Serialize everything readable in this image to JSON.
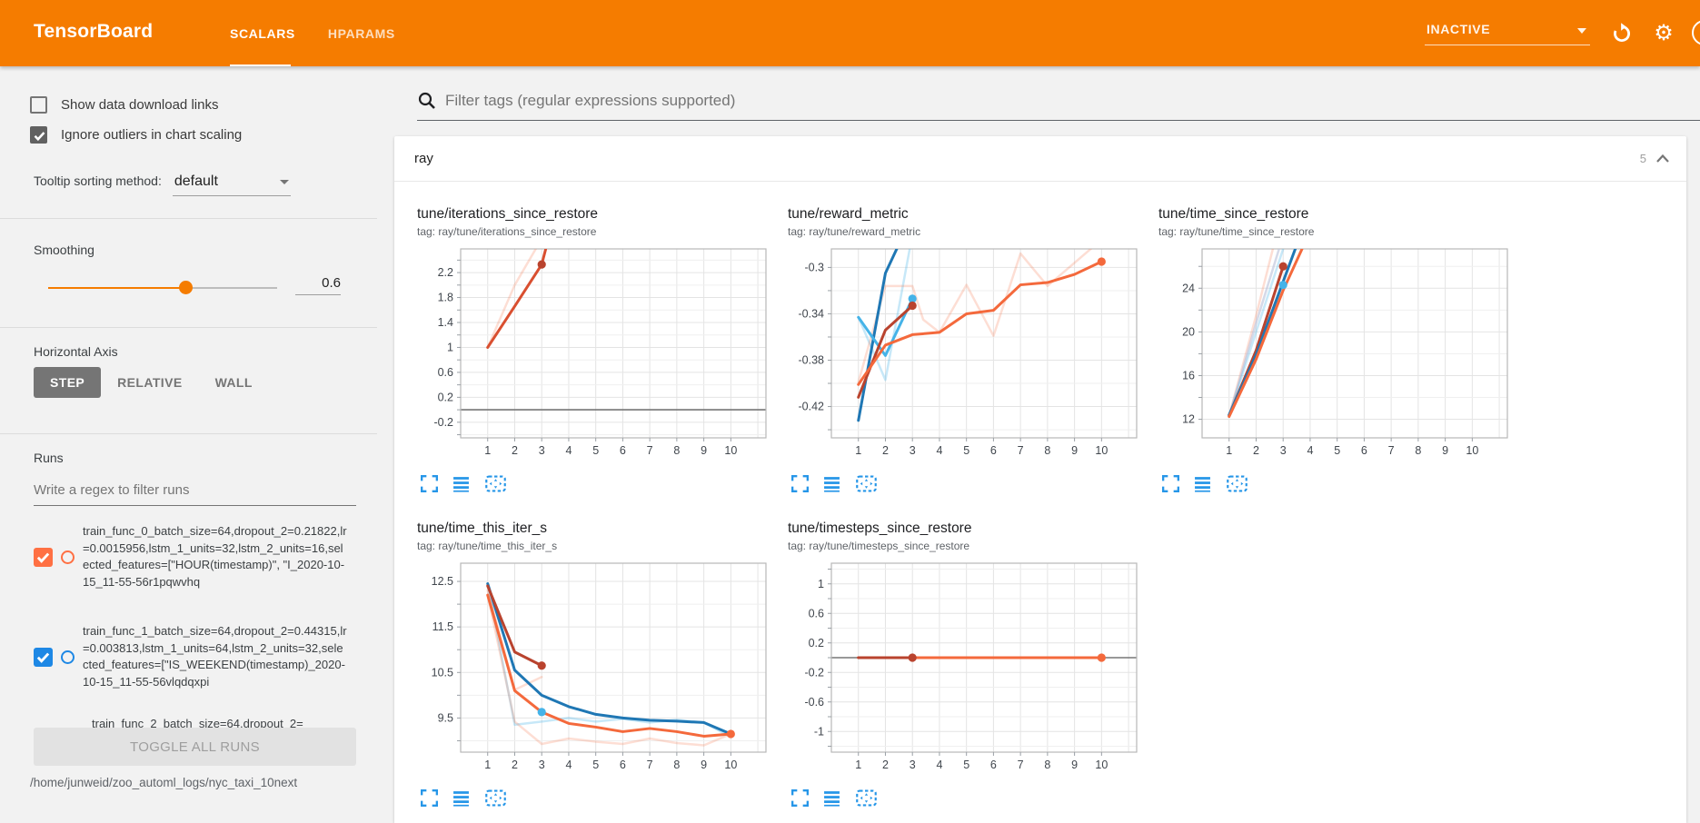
{
  "colors": {
    "header_bg": "#f57c00",
    "accent_orange": "#f57c00",
    "icon_blue": "#2696e8",
    "run_orange": "#ff7043",
    "run_blue": "#1e88e5"
  },
  "header": {
    "logo": "TensorBoard",
    "tabs": [
      {
        "label": "SCALARS",
        "active": true
      },
      {
        "label": "HPARAMS",
        "active": false
      }
    ],
    "status": "INACTIVE"
  },
  "sidebar": {
    "checkboxes": [
      {
        "label": "Show data download links",
        "checked": false
      },
      {
        "label": "Ignore outliers in chart scaling",
        "checked": true
      }
    ],
    "tooltip_sorting": {
      "label": "Tooltip sorting method:",
      "value": "default"
    },
    "smoothing": {
      "label": "Smoothing",
      "value": "0.6"
    },
    "horizontal_axis": {
      "label": "Horizontal Axis",
      "options": [
        "STEP",
        "RELATIVE",
        "WALL"
      ],
      "selected": "STEP"
    },
    "runs": {
      "label": "Runs",
      "filter_placeholder": "Write a regex to filter runs",
      "items": [
        {
          "name": "train_func_0_batch_size=64,dropout_2=0.21822,lr=0.0015956,lstm_1_units=32,lstm_2_units=16,selected_features=[\"HOUR(timestamp)\", \"I_2020-10-15_11-55-56r1pqwvhq",
          "checked": true,
          "color": "#ff7043"
        },
        {
          "name": "train_func_1_batch_size=64,dropout_2=0.44315,lr=0.003813,lstm_1_units=64,lstm_2_units=32,selected_features=[\"IS_WEEKEND(timestamp)_2020-10-15_11-55-56vlqdqxpi",
          "checked": true,
          "color": "#1e88e5"
        },
        {
          "name": "train_func_2_batch_size=64,dropout_2=",
          "checked": true,
          "color": null
        }
      ],
      "toggle_all_label": "TOGGLE ALL RUNS"
    },
    "log_path": "/home/junweid/zoo_automl_logs/nyc_taxi_10next"
  },
  "main": {
    "filter_placeholder": "Filter tags (regular expressions supported)",
    "section": {
      "title": "ray",
      "count": "5"
    }
  },
  "chart_data": [
    {
      "type": "line",
      "title": "tune/iterations_since_restore",
      "tag": "tag: ray/tune/iterations_since_restore",
      "xlim": [
        0,
        11.3
      ],
      "ylim": [
        -0.45,
        2.58
      ],
      "xticks": [
        1,
        2,
        3,
        4,
        5,
        6,
        7,
        8,
        9,
        10
      ],
      "yticks": [
        2.2,
        1.8,
        1.4,
        1,
        0.6,
        0.2,
        -0.2
      ],
      "zero_line": true,
      "series": [
        {
          "name": "run-0-raw",
          "color": "#f4693c",
          "opacity": 0.22,
          "width": 2.5,
          "points": [
            [
              1,
              1
            ],
            [
              2,
              2.0
            ],
            [
              2.78,
              2.58
            ]
          ]
        },
        {
          "name": "run-0-smoothed",
          "color": "#d94f30",
          "opacity": 1,
          "width": 3,
          "points": [
            [
              1,
              1
            ],
            [
              2,
              1.66
            ],
            [
              3,
              2.33
            ],
            [
              3.15,
              2.58
            ]
          ]
        }
      ],
      "dots": [
        {
          "x": 3,
          "y": 2.33,
          "color": "#b9432e"
        }
      ]
    },
    {
      "type": "line",
      "title": "tune/reward_metric",
      "tag": "tag: ray/tune/reward_metric",
      "xlim": [
        0,
        11.3
      ],
      "ylim": [
        -0.447,
        -0.284
      ],
      "xticks": [
        1,
        2,
        3,
        4,
        5,
        6,
        7,
        8,
        9,
        10
      ],
      "yticks": [
        -0.3,
        -0.34,
        -0.38,
        -0.42
      ],
      "zero_line": false,
      "series": [
        {
          "name": "run-1-raw",
          "color": "#45b3e8",
          "opacity": 0.3,
          "width": 2.5,
          "points": [
            [
              1,
              -0.343
            ],
            [
              2,
              -0.397
            ],
            [
              2.9,
              -0.284
            ]
          ]
        },
        {
          "name": "run-0-raw",
          "color": "#f4693c",
          "opacity": 0.22,
          "width": 2.5,
          "points": [
            [
              1,
              -0.399
            ],
            [
              2,
              -0.316
            ],
            [
              3,
              -0.316
            ],
            [
              3.4,
              -0.345
            ],
            [
              4,
              -0.356
            ],
            [
              5,
              -0.315
            ],
            [
              6,
              -0.359
            ],
            [
              7,
              -0.288
            ],
            [
              8,
              -0.316
            ],
            [
              9,
              -0.296
            ],
            [
              10,
              -0.276
            ]
          ]
        },
        {
          "name": "run-1-smoothed",
          "color": "#1f77b4",
          "opacity": 1,
          "width": 3,
          "points": [
            [
              1,
              -0.432
            ],
            [
              2,
              -0.305
            ],
            [
              2.42,
              -0.284
            ]
          ]
        },
        {
          "name": "run-1b-smoothed",
          "color": "#45b3e8",
          "opacity": 1,
          "width": 3,
          "points": [
            [
              1,
              -0.343
            ],
            [
              2,
              -0.376
            ],
            [
              3,
              -0.327
            ]
          ]
        },
        {
          "name": "run-0-smoothed",
          "color": "#b9432e",
          "opacity": 1,
          "width": 3,
          "points": [
            [
              1,
              -0.412
            ],
            [
              2,
              -0.354
            ],
            [
              3,
              -0.333
            ]
          ]
        },
        {
          "name": "run-2-smoothed",
          "color": "#f4693c",
          "opacity": 1,
          "width": 3,
          "points": [
            [
              1,
              -0.401
            ],
            [
              2,
              -0.367
            ],
            [
              3,
              -0.358
            ],
            [
              4,
              -0.356
            ],
            [
              5,
              -0.34
            ],
            [
              6,
              -0.337
            ],
            [
              7,
              -0.315
            ],
            [
              8,
              -0.313
            ],
            [
              9,
              -0.306
            ],
            [
              10,
              -0.295
            ]
          ]
        }
      ],
      "dots": [
        {
          "x": 3,
          "y": -0.327,
          "color": "#45b3e8"
        },
        {
          "x": 3,
          "y": -0.333,
          "color": "#b9432e"
        },
        {
          "x": 10,
          "y": -0.295,
          "color": "#f4693c"
        }
      ]
    },
    {
      "type": "line",
      "title": "tune/time_since_restore",
      "tag": "tag: ray/tune/time_since_restore",
      "xlim": [
        0,
        11.3
      ],
      "ylim": [
        10.3,
        27.6
      ],
      "xticks": [
        1,
        2,
        3,
        4,
        5,
        6,
        7,
        8,
        9,
        10
      ],
      "yticks": [
        24,
        20,
        16,
        12
      ],
      "zero_line": false,
      "series": [
        {
          "name": "run-0-raw",
          "color": "#f4693c",
          "opacity": 0.22,
          "width": 2.5,
          "points": [
            [
              1,
              12.3
            ],
            [
              2,
              21.5
            ],
            [
              2.62,
              27.6
            ]
          ]
        },
        {
          "name": "run-2-raw",
          "color": "#b9c0d8",
          "opacity": 0.6,
          "width": 2.5,
          "points": [
            [
              1,
              12.3
            ],
            [
              2,
              20.8
            ],
            [
              2.85,
              27.6
            ]
          ]
        },
        {
          "name": "run-1-raw",
          "color": "#45b3e8",
          "opacity": 0.3,
          "width": 2.5,
          "points": [
            [
              1,
              12.3
            ],
            [
              2,
              20.0
            ],
            [
              3,
              27.6
            ]
          ]
        },
        {
          "name": "run-0-smoothed",
          "color": "#b9432e",
          "opacity": 1,
          "width": 3,
          "points": [
            [
              1,
              12.35
            ],
            [
              2,
              18.3
            ],
            [
              3,
              26.0
            ]
          ]
        },
        {
          "name": "run-1-smoothed",
          "color": "#1f77b4",
          "opacity": 1,
          "width": 3,
          "points": [
            [
              1,
              12.4
            ],
            [
              2,
              17.9
            ],
            [
              3,
              24.6
            ],
            [
              3.45,
              27.6
            ]
          ]
        },
        {
          "name": "run-2-smoothed",
          "color": "#f4693c",
          "opacity": 1,
          "width": 3,
          "points": [
            [
              1,
              12.25
            ],
            [
              2,
              17.5
            ],
            [
              3,
              23.8
            ],
            [
              3.7,
              27.6
            ]
          ]
        }
      ],
      "dots": [
        {
          "x": 3,
          "y": 26.0,
          "color": "#b9432e"
        },
        {
          "x": 3,
          "y": 24.3,
          "color": "#45b3e8"
        }
      ]
    },
    {
      "type": "line",
      "title": "tune/time_this_iter_s",
      "tag": "tag: ray/tune/time_this_iter_s",
      "xlim": [
        0,
        11.3
      ],
      "ylim": [
        8.75,
        12.9
      ],
      "xticks": [
        1,
        2,
        3,
        4,
        5,
        6,
        7,
        8,
        9,
        10
      ],
      "yticks": [
        12.5,
        11.5,
        10.5,
        9.5
      ],
      "zero_line": false,
      "series": [
        {
          "name": "run-1-raw",
          "color": "#45b3e8",
          "opacity": 0.3,
          "width": 2.5,
          "points": [
            [
              1,
              12.45
            ],
            [
              2,
              9.35
            ],
            [
              3,
              9.42
            ],
            [
              4,
              9.5
            ],
            [
              5,
              9.42
            ],
            [
              6,
              9.48
            ],
            [
              7,
              9.4
            ],
            [
              8,
              9.46
            ],
            [
              9,
              9.4
            ],
            [
              10,
              9.08
            ]
          ]
        },
        {
          "name": "run-0-raw",
          "color": "#f4693c",
          "opacity": 0.22,
          "width": 2.5,
          "points": [
            [
              1,
              12.2
            ],
            [
              2,
              9.42
            ],
            [
              3,
              8.93
            ],
            [
              4,
              9.05
            ],
            [
              5,
              8.98
            ],
            [
              6,
              8.93
            ],
            [
              7,
              9.05
            ],
            [
              8,
              8.95
            ],
            [
              9,
              8.9
            ],
            [
              10,
              9.15
            ]
          ]
        },
        {
          "name": "run-0b-raw",
          "color": "#f4693c",
          "opacity": 0.22,
          "width": 2.5,
          "points": [
            [
              1,
              12.3
            ],
            [
              2,
              10.12
            ],
            [
              3,
              10.4
            ]
          ]
        },
        {
          "name": "run-1-smoothed",
          "color": "#1f77b4",
          "opacity": 1,
          "width": 3,
          "points": [
            [
              1,
              12.45
            ],
            [
              2,
              10.55
            ],
            [
              3,
              10.0
            ],
            [
              4,
              9.75
            ],
            [
              5,
              9.58
            ],
            [
              6,
              9.5
            ],
            [
              7,
              9.45
            ],
            [
              8,
              9.43
            ],
            [
              9,
              9.4
            ],
            [
              10,
              9.15
            ]
          ]
        },
        {
          "name": "run-2-smoothed",
          "color": "#f4693c",
          "opacity": 1,
          "width": 3,
          "points": [
            [
              1,
              12.2
            ],
            [
              2,
              10.1
            ],
            [
              3,
              9.63
            ],
            [
              4,
              9.38
            ],
            [
              5,
              9.3
            ],
            [
              6,
              9.2
            ],
            [
              7,
              9.27
            ],
            [
              8,
              9.2
            ],
            [
              9,
              9.1
            ],
            [
              10,
              9.15
            ]
          ]
        },
        {
          "name": "run-0-smoothed",
          "color": "#b9432e",
          "opacity": 1,
          "width": 3,
          "points": [
            [
              1,
              12.4
            ],
            [
              2,
              10.95
            ],
            [
              3,
              10.65
            ]
          ]
        }
      ],
      "dots": [
        {
          "x": 3,
          "y": 10.65,
          "color": "#b9432e"
        },
        {
          "x": 3,
          "y": 9.63,
          "color": "#45b3e8"
        },
        {
          "x": 10,
          "y": 9.15,
          "color": "#f4693c"
        }
      ]
    },
    {
      "type": "line",
      "title": "tune/timesteps_since_restore",
      "tag": "tag: ray/tune/timesteps_since_restore",
      "xlim": [
        0,
        11.3
      ],
      "ylim": [
        -1.28,
        1.28
      ],
      "xticks": [
        1,
        2,
        3,
        4,
        5,
        6,
        7,
        8,
        9,
        10
      ],
      "yticks": [
        1,
        0.6,
        0.2,
        -0.2,
        -0.6,
        -1
      ],
      "zero_line": true,
      "series": [
        {
          "name": "run-2-smoothed",
          "color": "#f4693c",
          "opacity": 1,
          "width": 3,
          "points": [
            [
              1,
              0
            ],
            [
              10,
              0
            ]
          ]
        },
        {
          "name": "run-0-smoothed",
          "color": "#b9432e",
          "opacity": 1,
          "width": 3,
          "points": [
            [
              1,
              0
            ],
            [
              3,
              0
            ]
          ]
        }
      ],
      "dots": [
        {
          "x": 3,
          "y": 0,
          "color": "#b9432e"
        },
        {
          "x": 10,
          "y": 0,
          "color": "#f4693c"
        }
      ]
    }
  ]
}
